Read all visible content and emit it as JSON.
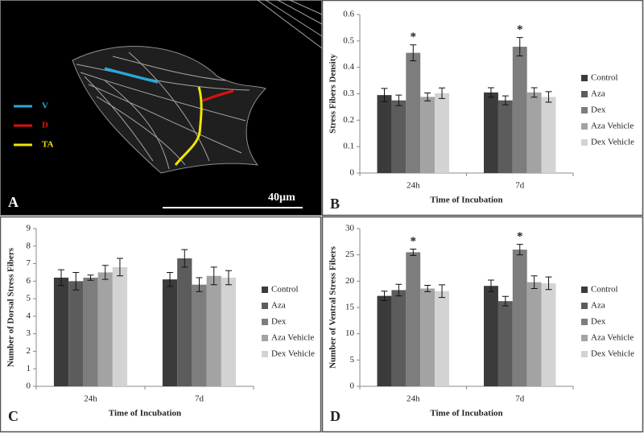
{
  "image_panel": {
    "label": "A",
    "legend": [
      "V",
      "D",
      "TA"
    ],
    "scale_bar": "40µm"
  },
  "chart_data": [
    {
      "type": "bar",
      "panel_label": "B",
      "y_label": "Stress Fibers Density",
      "x_label": "Time of Incubation",
      "categories": [
        "24h",
        "7d"
      ],
      "series": [
        {
          "name": "Control",
          "color": "#3b3b3b",
          "values": [
            0.295,
            0.305
          ],
          "errors": [
            0.025,
            0.018
          ]
        },
        {
          "name": "Aza",
          "color": "#5c5c5c",
          "values": [
            0.275,
            0.275
          ],
          "errors": [
            0.02,
            0.017
          ]
        },
        {
          "name": "Dex",
          "color": "#7d7d7d",
          "values": [
            0.455,
            0.478
          ],
          "errors": [
            0.03,
            0.035
          ]
        },
        {
          "name": "Aza Vehicle",
          "color": "#a3a3a3",
          "values": [
            0.288,
            0.305
          ],
          "errors": [
            0.015,
            0.018
          ]
        },
        {
          "name": "Dex Vehicle",
          "color": "#d3d3d3",
          "values": [
            0.302,
            0.288
          ],
          "errors": [
            0.02,
            0.02
          ]
        }
      ],
      "ylim": [
        0,
        0.6
      ],
      "yticks": [
        0,
        0.1,
        0.2,
        0.3,
        0.4,
        0.5,
        0.6
      ],
      "annotations": [
        {
          "text": "*",
          "category": "24h",
          "series": "Dex"
        },
        {
          "text": "*",
          "category": "7d",
          "series": "Dex"
        }
      ]
    },
    {
      "type": "bar",
      "panel_label": "C",
      "y_label": "Number of Dorsal Stress Fibers",
      "x_label": "Time of Incubation",
      "categories": [
        "24h",
        "7d"
      ],
      "series": [
        {
          "name": "Control",
          "color": "#3b3b3b",
          "values": [
            6.2,
            6.1
          ],
          "errors": [
            0.45,
            0.4
          ]
        },
        {
          "name": "Aza",
          "color": "#5c5c5c",
          "values": [
            6.0,
            7.3
          ],
          "errors": [
            0.5,
            0.5
          ]
        },
        {
          "name": "Dex",
          "color": "#7d7d7d",
          "values": [
            6.2,
            5.8
          ],
          "errors": [
            0.15,
            0.4
          ]
        },
        {
          "name": "Aza Vehicle",
          "color": "#a3a3a3",
          "values": [
            6.5,
            6.3
          ],
          "errors": [
            0.4,
            0.5
          ]
        },
        {
          "name": "Dex Vehicle",
          "color": "#d3d3d3",
          "values": [
            6.8,
            6.2
          ],
          "errors": [
            0.5,
            0.4
          ]
        }
      ],
      "ylim": [
        0,
        9
      ],
      "yticks": [
        0,
        1,
        2,
        3,
        4,
        5,
        6,
        7,
        8,
        9
      ],
      "annotations": []
    },
    {
      "type": "bar",
      "panel_label": "D",
      "y_label": "Number of Ventral Stress Fibers",
      "x_label": "Time of Incubation",
      "categories": [
        "24h",
        "7d"
      ],
      "series": [
        {
          "name": "Control",
          "color": "#3b3b3b",
          "values": [
            17.2,
            19.1
          ],
          "errors": [
            0.9,
            1.1
          ]
        },
        {
          "name": "Aza",
          "color": "#5c5c5c",
          "values": [
            18.3,
            16.2
          ],
          "errors": [
            1.1,
            0.9
          ]
        },
        {
          "name": "Dex",
          "color": "#7d7d7d",
          "values": [
            25.5,
            26.0
          ],
          "errors": [
            0.6,
            1.0
          ]
        },
        {
          "name": "Aza Vehicle",
          "color": "#a3a3a3",
          "values": [
            18.6,
            19.8
          ],
          "errors": [
            0.6,
            1.2
          ]
        },
        {
          "name": "Dex Vehicle",
          "color": "#d3d3d3",
          "values": [
            18.1,
            19.6
          ],
          "errors": [
            1.2,
            1.2
          ]
        }
      ],
      "ylim": [
        0,
        30
      ],
      "yticks": [
        0,
        5,
        10,
        15,
        20,
        25,
        30
      ],
      "annotations": [
        {
          "text": "*",
          "category": "24h",
          "series": "Dex"
        },
        {
          "text": "*",
          "category": "7d",
          "series": "Dex"
        }
      ]
    }
  ]
}
